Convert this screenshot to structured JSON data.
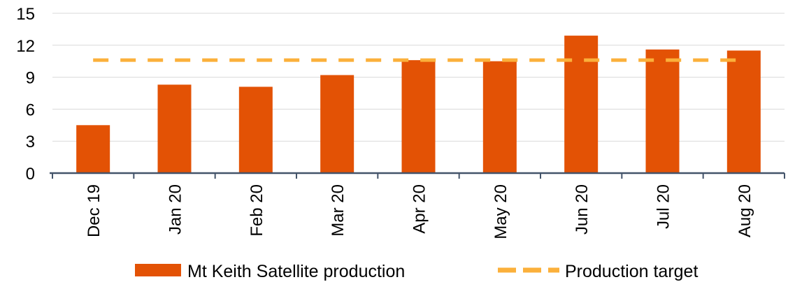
{
  "chart_data": {
    "type": "bar",
    "title": "",
    "xlabel": "",
    "ylabel": "",
    "ylim": [
      0,
      15
    ],
    "yticks": [
      0,
      3,
      6,
      9,
      12,
      15
    ],
    "categories": [
      "Dec 19",
      "Jan 20",
      "Feb 20",
      "Mar 20",
      "Apr 20",
      "May 20",
      "Jun 20",
      "Jul 20",
      "Aug 20"
    ],
    "series": [
      {
        "name": "Mt Keith Satellite production",
        "type": "bar",
        "color": "#e35205",
        "values": [
          4.5,
          8.3,
          8.1,
          9.2,
          10.6,
          10.5,
          12.9,
          11.6,
          11.5
        ]
      },
      {
        "name": "Production target",
        "type": "line",
        "style": "dashed",
        "color": "#fbb03b",
        "values": [
          10.6,
          10.6,
          10.6,
          10.6,
          10.6,
          10.6,
          10.6,
          10.6,
          10.6
        ]
      }
    ],
    "grid": true,
    "legend": "bottom"
  },
  "colors": {
    "grid": "#d9d9d9",
    "axis": "#44546a"
  }
}
